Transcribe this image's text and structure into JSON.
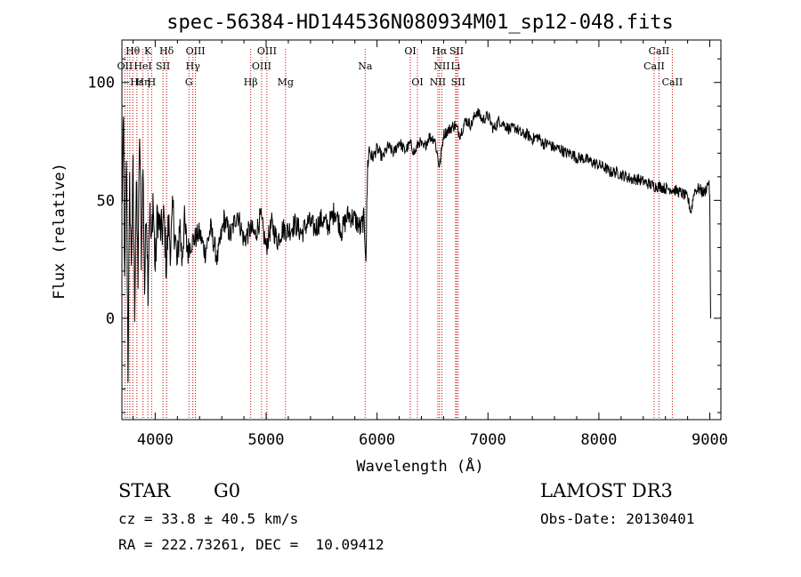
{
  "chart_data": {
    "type": "line",
    "title": "spec-56384-HD144536N080934M01_sp12-048.fits",
    "xlabel": "Wavelength (Å)",
    "ylabel": "Flux (relative)",
    "xlim": [
      3700,
      9100
    ],
    "ylim": [
      -43,
      118
    ],
    "x_ticks": [
      4000,
      5000,
      6000,
      7000,
      8000,
      9000
    ],
    "y_ticks": [
      0,
      50,
      100
    ],
    "x_tick_labels": [
      "4000",
      "5000",
      "6000",
      "7000",
      "8000",
      "9000"
    ],
    "y_tick_labels": [
      "0",
      "50",
      "100"
    ],
    "series": [
      {
        "name": "spectrum",
        "anchors": [
          [
            3700,
            45
          ],
          [
            3715,
            82
          ],
          [
            3725,
            10
          ],
          [
            3740,
            70
          ],
          [
            3755,
            -22
          ],
          [
            3770,
            55
          ],
          [
            3785,
            25
          ],
          [
            3800,
            62
          ],
          [
            3815,
            5
          ],
          [
            3830,
            58
          ],
          [
            3845,
            18
          ],
          [
            3860,
            80
          ],
          [
            3875,
            28
          ],
          [
            3890,
            65
          ],
          [
            3905,
            12
          ],
          [
            3920,
            50
          ],
          [
            3935,
            15
          ],
          [
            3950,
            48
          ],
          [
            3965,
            28
          ],
          [
            3980,
            52
          ],
          [
            4000,
            20
          ],
          [
            4020,
            45
          ],
          [
            4040,
            38
          ],
          [
            4060,
            36
          ],
          [
            4080,
            42
          ],
          [
            4100,
            22
          ],
          [
            4120,
            40
          ],
          [
            4140,
            30
          ],
          [
            4160,
            45
          ],
          [
            4180,
            35
          ],
          [
            4200,
            20
          ],
          [
            4220,
            42
          ],
          [
            4240,
            25
          ],
          [
            4260,
            40
          ],
          [
            4280,
            32
          ],
          [
            4300,
            30
          ],
          [
            4340,
            33
          ],
          [
            4400,
            36
          ],
          [
            4450,
            28
          ],
          [
            4500,
            38
          ],
          [
            4560,
            25
          ],
          [
            4620,
            42
          ],
          [
            4680,
            35
          ],
          [
            4740,
            45
          ],
          [
            4800,
            33
          ],
          [
            4860,
            38
          ],
          [
            4900,
            35
          ],
          [
            4950,
            43
          ],
          [
            5000,
            30
          ],
          [
            5050,
            40
          ],
          [
            5100,
            33
          ],
          [
            5150,
            38
          ],
          [
            5200,
            37
          ],
          [
            5260,
            40
          ],
          [
            5320,
            36
          ],
          [
            5380,
            41
          ],
          [
            5440,
            38
          ],
          [
            5500,
            42
          ],
          [
            5560,
            39
          ],
          [
            5620,
            46
          ],
          [
            5680,
            37
          ],
          [
            5740,
            44
          ],
          [
            5800,
            42
          ],
          [
            5850,
            38
          ],
          [
            5880,
            42
          ],
          [
            5900,
            27
          ],
          [
            5915,
            65
          ],
          [
            5930,
            72
          ],
          [
            5960,
            68
          ],
          [
            6000,
            72
          ],
          [
            6050,
            68
          ],
          [
            6100,
            73
          ],
          [
            6150,
            70
          ],
          [
            6200,
            75
          ],
          [
            6250,
            71
          ],
          [
            6300,
            74
          ],
          [
            6340,
            70
          ],
          [
            6380,
            75
          ],
          [
            6420,
            72
          ],
          [
            6470,
            77
          ],
          [
            6520,
            76
          ],
          [
            6563,
            64
          ],
          [
            6600,
            78
          ],
          [
            6650,
            80
          ],
          [
            6700,
            82
          ],
          [
            6750,
            78
          ],
          [
            6800,
            84
          ],
          [
            6850,
            82
          ],
          [
            6900,
            88
          ],
          [
            6950,
            84
          ],
          [
            7000,
            86
          ],
          [
            7050,
            80
          ],
          [
            7100,
            84
          ],
          [
            7150,
            82
          ],
          [
            7200,
            80
          ],
          [
            7250,
            81
          ],
          [
            7300,
            78
          ],
          [
            7350,
            78
          ],
          [
            7400,
            76
          ],
          [
            7450,
            77
          ],
          [
            7500,
            74
          ],
          [
            7550,
            74
          ],
          [
            7600,
            72
          ],
          [
            7650,
            72
          ],
          [
            7700,
            70
          ],
          [
            7750,
            70
          ],
          [
            7800,
            68
          ],
          [
            7850,
            68
          ],
          [
            7900,
            67
          ],
          [
            7950,
            66
          ],
          [
            8000,
            65
          ],
          [
            8050,
            64
          ],
          [
            8100,
            62
          ],
          [
            8150,
            62
          ],
          [
            8200,
            61
          ],
          [
            8250,
            60
          ],
          [
            8300,
            59
          ],
          [
            8350,
            59
          ],
          [
            8400,
            58
          ],
          [
            8450,
            57
          ],
          [
            8500,
            56
          ],
          [
            8550,
            56
          ],
          [
            8600,
            55
          ],
          [
            8650,
            55
          ],
          [
            8700,
            54
          ],
          [
            8750,
            53
          ],
          [
            8800,
            51
          ],
          [
            8830,
            45
          ],
          [
            8860,
            54
          ],
          [
            8900,
            55
          ],
          [
            8950,
            53
          ],
          [
            8990,
            58
          ],
          [
            9000,
            52
          ],
          [
            9005,
            10
          ],
          [
            9008,
            0
          ]
        ]
      }
    ],
    "line_labels": [
      {
        "text": "Hθ",
        "x": 3798,
        "row": 0
      },
      {
        "text": "OII",
        "x": 3727,
        "row": 1
      },
      {
        "text": "Hε",
        "x": 3835,
        "row": 2
      },
      {
        "text": "K",
        "x": 3934,
        "row": 0
      },
      {
        "text": "HeI",
        "x": 3889,
        "row": 1
      },
      {
        "text": "Hη",
        "x": 3889,
        "row": 2
      },
      {
        "text": "SII",
        "x": 4070,
        "row": 1
      },
      {
        "text": "H",
        "x": 3968,
        "row": 2
      },
      {
        "text": "Hδ",
        "x": 4102,
        "row": 0
      },
      {
        "text": "OIII",
        "x": 4363,
        "row": 0
      },
      {
        "text": "Hγ",
        "x": 4340,
        "row": 1
      },
      {
        "text": "G",
        "x": 4304,
        "row": 2
      },
      {
        "text": "OIII",
        "x": 5007,
        "row": 0
      },
      {
        "text": "OIII",
        "x": 4959,
        "row": 1
      },
      {
        "text": "Hβ",
        "x": 4861,
        "row": 2
      },
      {
        "text": "Mg",
        "x": 5175,
        "row": 2
      },
      {
        "text": "Na",
        "x": 5893,
        "row": 1
      },
      {
        "text": "OI",
        "x": 6300,
        "row": 0
      },
      {
        "text": "OI",
        "x": 6364,
        "row": 2
      },
      {
        "text": "Hα",
        "x": 6563,
        "row": 0
      },
      {
        "text": "SII",
        "x": 6717,
        "row": 0
      },
      {
        "text": "NII",
        "x": 6584,
        "row": 1
      },
      {
        "text": "Li",
        "x": 6708,
        "row": 1
      },
      {
        "text": "NII",
        "x": 6548,
        "row": 2
      },
      {
        "text": "SII",
        "x": 6731,
        "row": 2
      },
      {
        "text": "CaII",
        "x": 8542,
        "row": 0
      },
      {
        "text": "CaII",
        "x": 8498,
        "row": 1
      },
      {
        "text": "CaII",
        "x": 8662,
        "row": 2
      }
    ],
    "vertical_line_positions": [
      3727,
      3750,
      3771,
      3798,
      3835,
      3889,
      3934,
      3968,
      4070,
      4102,
      4304,
      4340,
      4363,
      4861,
      4959,
      5007,
      5175,
      5893,
      6300,
      6364,
      6548,
      6563,
      6584,
      6708,
      6717,
      6731,
      8498,
      8542,
      8662
    ],
    "line_color": "#cc0000"
  },
  "info": {
    "object_class": "STAR",
    "subclass": "G0",
    "survey": "LAMOST DR3",
    "redshift": "cz = 33.8 ± 40.5 km/s",
    "obs_date": "Obs-Date: 20130401",
    "coords": "RA = 222.73261, DEC =  10.09412"
  }
}
